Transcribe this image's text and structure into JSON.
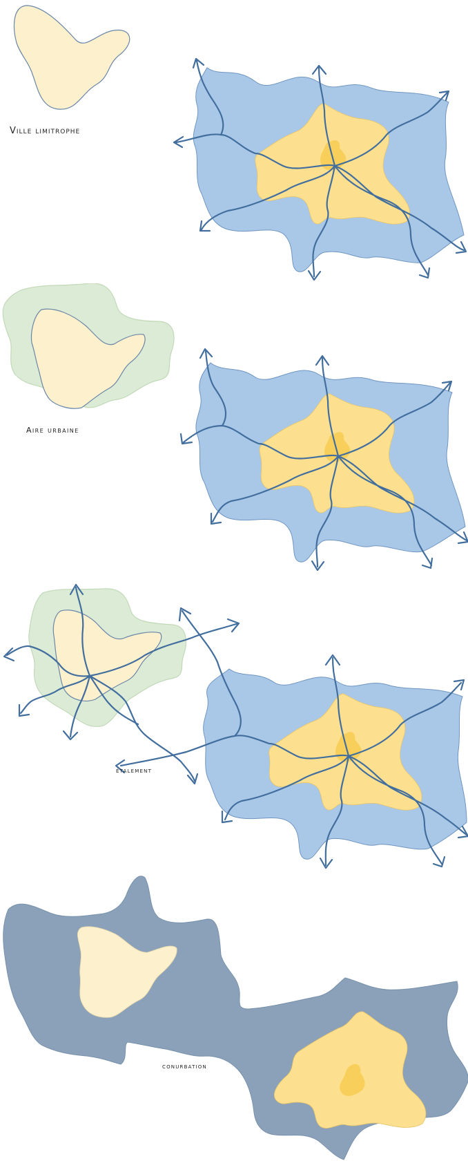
{
  "colors": {
    "suburb_blue": "#a9c8e8",
    "suburb_blue_stroke": "#6f95c0",
    "city_yellow": "#fde08f",
    "city_core": "#f8cf5b",
    "town_cream": "#fdf0cc",
    "town_stroke": "#6a86a8",
    "urban_green": "#dcebd5",
    "urban_green_stroke": "#c2d9b9",
    "road_blue": "#426e9e",
    "conurbation_slate": "#8aa1b9"
  },
  "panels": [
    {
      "key": "ville_limitrophe",
      "label": "Ville limitrophe"
    },
    {
      "key": "aire_urbaine",
      "label": "Aire urbaine"
    },
    {
      "key": "etalement",
      "label": "étalement"
    },
    {
      "key": "conurbation",
      "label": "conurbation"
    }
  ],
  "icons": {
    "road_arrow": "arrow-head-icon"
  }
}
